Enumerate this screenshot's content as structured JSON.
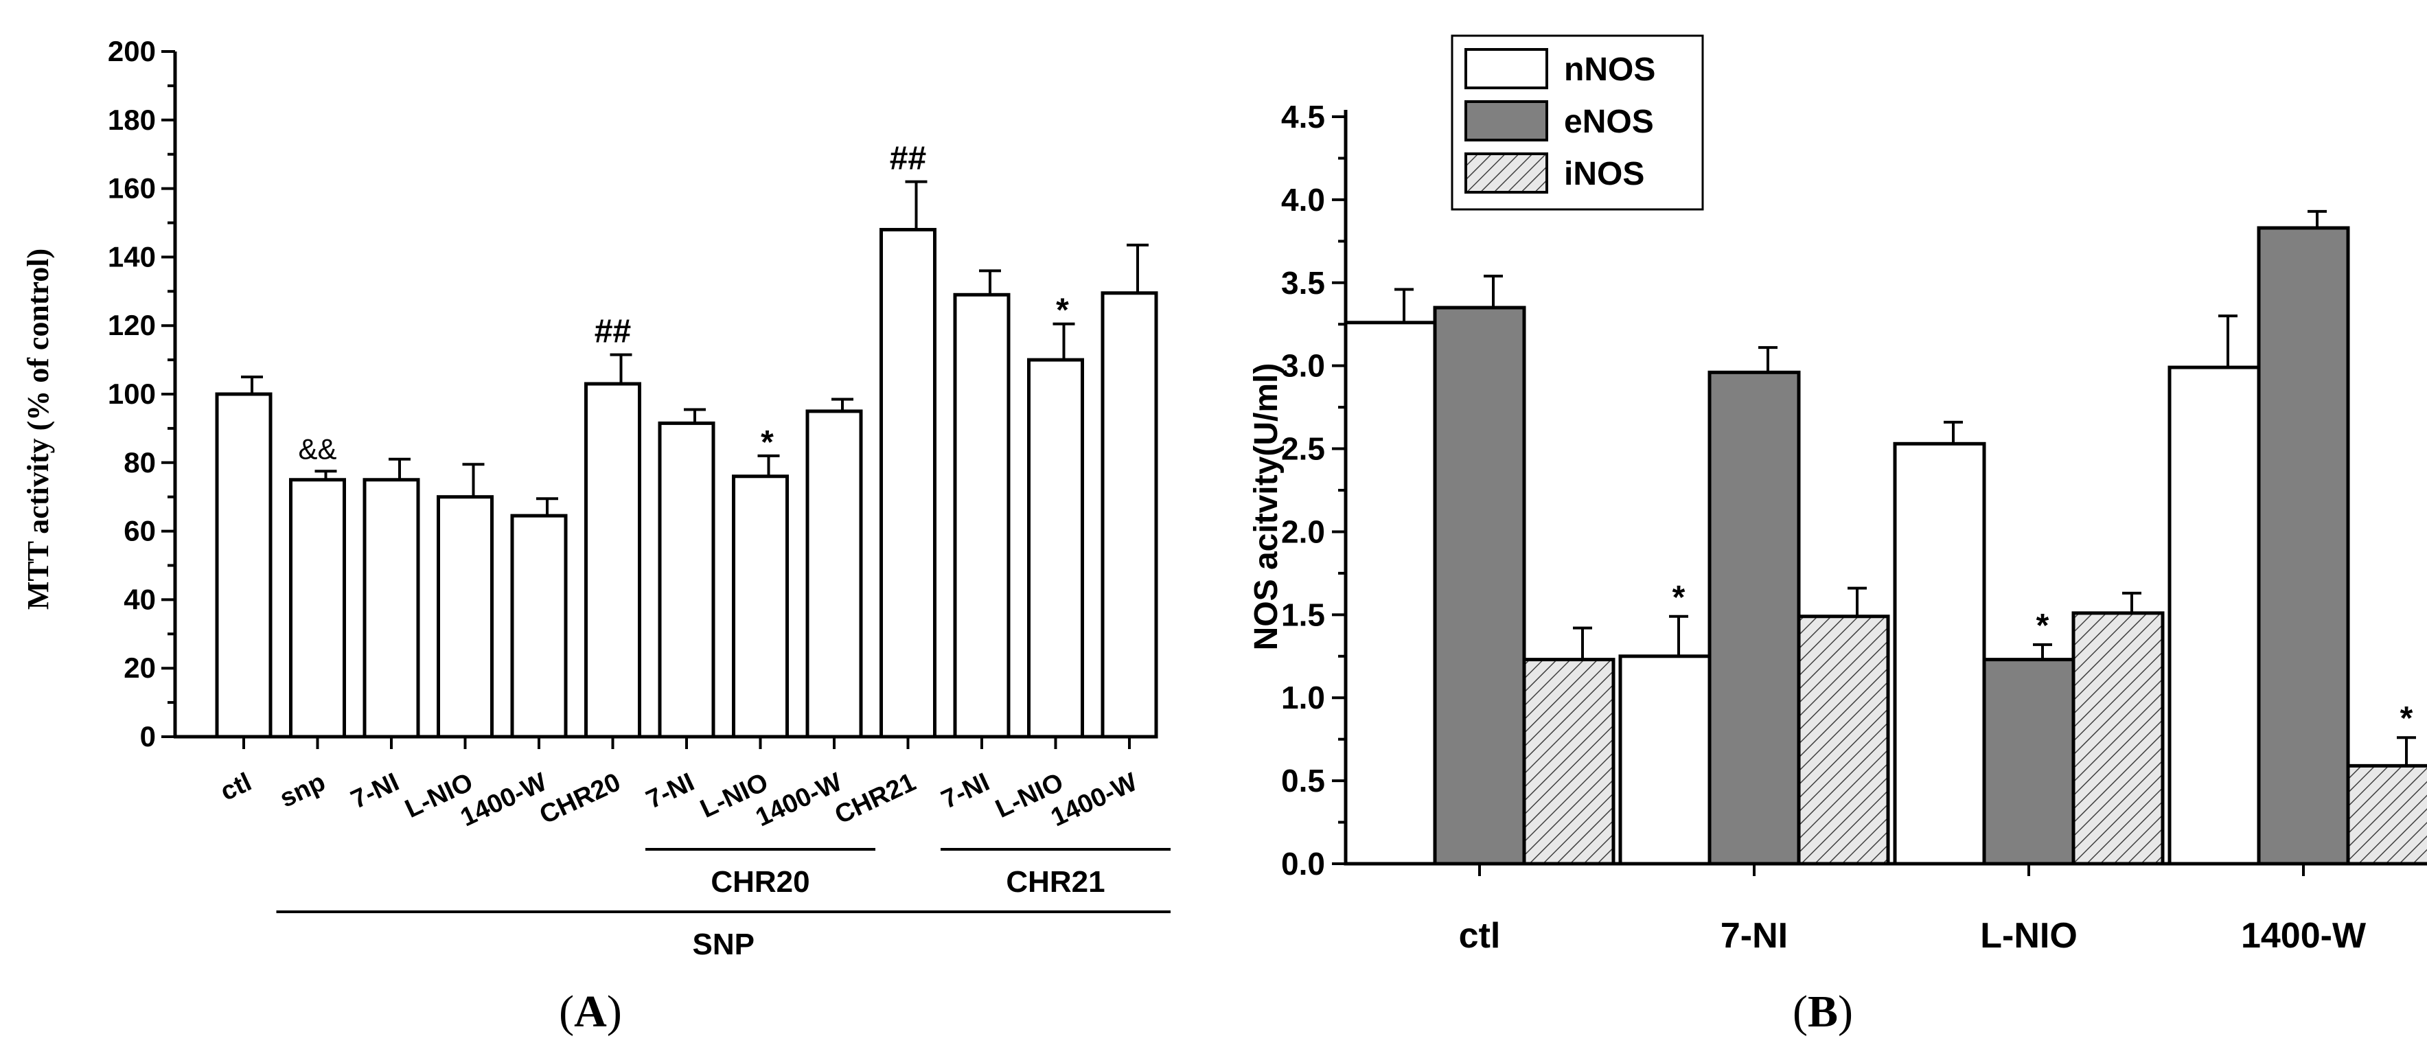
{
  "colors": {
    "ink": "#000000",
    "bar_white": "#ffffff",
    "bar_gray": "#808080",
    "hatch_bg": "#e8e8e8",
    "hatch_line": "#404040"
  },
  "chart_data": [
    {
      "type": "bar",
      "panel_label": "A",
      "ylabel": "MTT activity (% of control)",
      "ylim": [
        0,
        200
      ],
      "yticks": [
        0,
        20,
        40,
        60,
        80,
        100,
        120,
        140,
        160,
        180,
        200
      ],
      "categories": [
        "ctl",
        "snp",
        "7-NI",
        "L-NIO",
        "1400-W",
        "CHR20",
        "7-NI",
        "L-NIO",
        "1400-W",
        "CHR21",
        "7-NI",
        "L-NIO",
        "1400-W"
      ],
      "values": [
        100,
        75,
        75,
        70,
        64.5,
        103,
        91.5,
        76,
        95,
        148,
        129,
        110,
        129.5
      ],
      "errors": [
        5,
        2.5,
        6,
        9.5,
        5,
        8.5,
        4,
        6,
        3.5,
        14,
        7,
        10.5,
        14
      ],
      "annotations": [
        "",
        "&&",
        "",
        "",
        "",
        "##",
        "",
        "*",
        "",
        "##",
        "",
        "*",
        ""
      ],
      "groups": [
        {
          "label": "CHR20",
          "from": 6,
          "to": 8
        },
        {
          "label": "CHR21",
          "from": 10,
          "to": 12
        },
        {
          "label": "SNP",
          "from": 1,
          "to": 12
        }
      ]
    },
    {
      "type": "bar",
      "panel_label": "B",
      "ylabel": "NOS acitvity(U/ml)",
      "ylim": [
        0,
        4.5
      ],
      "yticks": [
        "0.0",
        "0.5",
        "1.0",
        "1.5",
        "2.0",
        "2.5",
        "3.0",
        "3.5",
        "4.0",
        "4.5"
      ],
      "categories": [
        "ctl",
        "7-NI",
        "L-NIO",
        "1400-W"
      ],
      "series": [
        {
          "name": "nNOS",
          "style": "white",
          "values": [
            3.26,
            1.25,
            2.53,
            2.99
          ],
          "errors": [
            0.2,
            0.24,
            0.13,
            0.31
          ],
          "annotations": [
            "",
            "*",
            "",
            ""
          ]
        },
        {
          "name": "eNOS",
          "style": "gray",
          "values": [
            3.35,
            2.96,
            1.23,
            3.83
          ],
          "errors": [
            0.19,
            0.15,
            0.09,
            0.1
          ],
          "annotations": [
            "",
            "",
            "*",
            ""
          ]
        },
        {
          "name": "iNOS",
          "style": "hatch",
          "values": [
            1.23,
            1.49,
            1.51,
            0.59
          ],
          "errors": [
            0.19,
            0.17,
            0.12,
            0.17
          ],
          "annotations": [
            "",
            "",
            "",
            "*"
          ]
        }
      ],
      "legend_position": "top-left"
    }
  ]
}
